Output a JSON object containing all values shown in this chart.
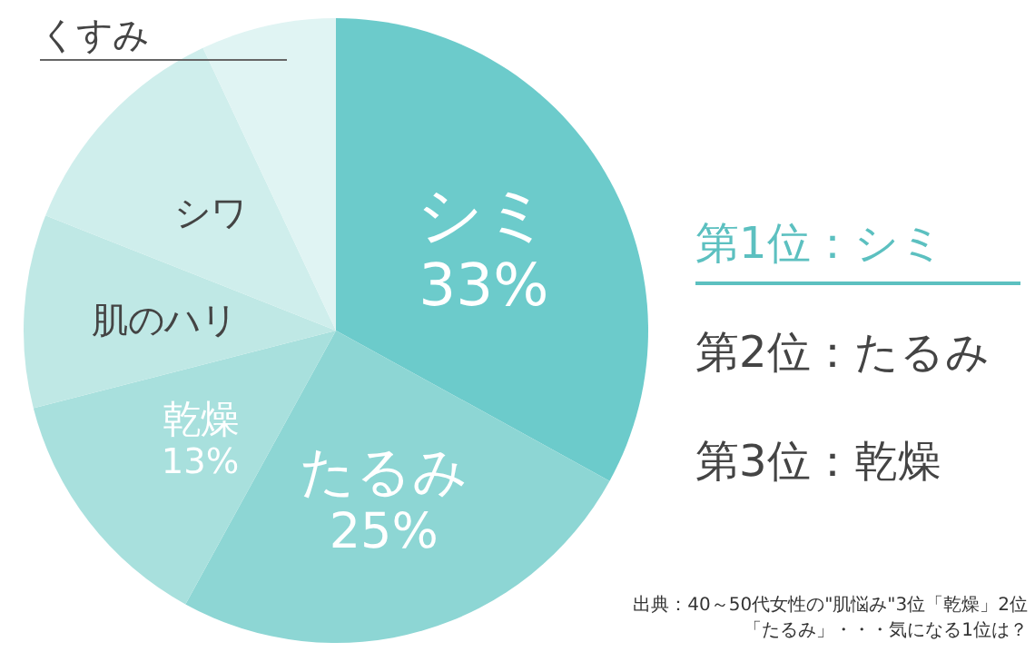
{
  "chart_data": {
    "type": "pie",
    "categories": [
      "シミ",
      "たるみ",
      "乾燥",
      "肌のハリ",
      "シワ",
      "くすみ"
    ],
    "values": [
      33,
      25,
      13,
      10,
      12,
      7
    ],
    "colors": [
      "#6ccbcb",
      "#8dd6d4",
      "#a8e0dd",
      "#bfe8e5",
      "#cfeeec",
      "#e0f4f3"
    ],
    "value_labels": [
      "33%",
      "25%",
      "13%",
      null,
      null,
      null
    ],
    "annotations": [
      "第1位：シミ",
      "第2位：たるみ",
      "第3位：乾燥",
      "出典：40～50代女性の\"肌悩み\"3位「乾燥」2位",
      "「たるみ」・・・気になる1位は？"
    ]
  }
}
